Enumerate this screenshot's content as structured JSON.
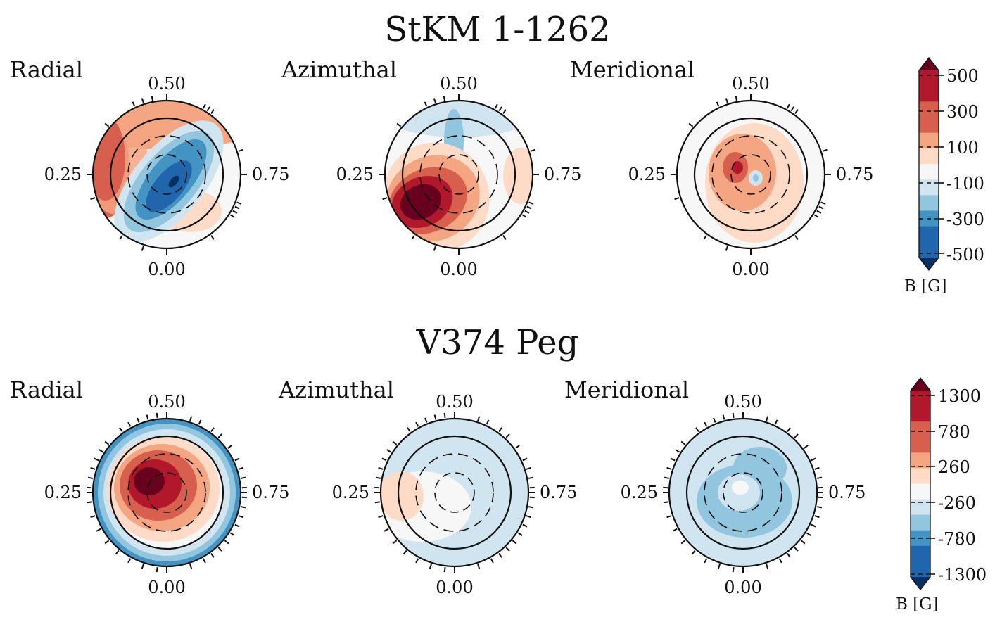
{
  "chart_data": [
    {
      "type": "heatmap",
      "title": "StKM 1-1262",
      "panels": [
        {
          "label": "Radial",
          "phase_labels": [
            "0.50",
            "0.25",
            "0.75",
            "0.00"
          ]
        },
        {
          "label": "Azimuthal",
          "phase_labels": [
            "0.50",
            "0.25",
            "0.75",
            "0.00"
          ]
        },
        {
          "label": "Meridional",
          "phase_labels": [
            "0.50",
            "0.25",
            "0.75",
            "0.00"
          ]
        }
      ],
      "colorbar": {
        "label": "B [G]",
        "tick_labels": [
          "500",
          "300",
          "100",
          "-100",
          "-300",
          "-500"
        ],
        "range": [
          -600,
          600
        ],
        "extend": "both",
        "colormap": "RdBu_r"
      }
    },
    {
      "type": "heatmap",
      "title": "V374 Peg",
      "panels": [
        {
          "label": "Radial",
          "phase_labels": [
            "0.50",
            "0.25",
            "0.75",
            "0.00"
          ]
        },
        {
          "label": "Azimuthal",
          "phase_labels": [
            "0.50",
            "0.25",
            "0.75",
            "0.00"
          ]
        },
        {
          "label": "Meridional",
          "phase_labels": [
            "0.50",
            "0.25",
            "0.75",
            "0.00"
          ]
        }
      ],
      "colorbar": {
        "label": "B [G]",
        "tick_labels": [
          "1300",
          "780",
          "260",
          "-260",
          "-780",
          "-1300"
        ],
        "range": [
          -1560,
          1560
        ],
        "extend": "both",
        "colormap": "RdBu_r"
      }
    }
  ],
  "colors": {
    "palette": [
      "#053061",
      "#2166ac",
      "#4393c3",
      "#92c5de",
      "#d1e5f0",
      "#f7f7f7",
      "#fddbc7",
      "#f4a582",
      "#d6604d",
      "#b2182b",
      "#67001f"
    ]
  }
}
